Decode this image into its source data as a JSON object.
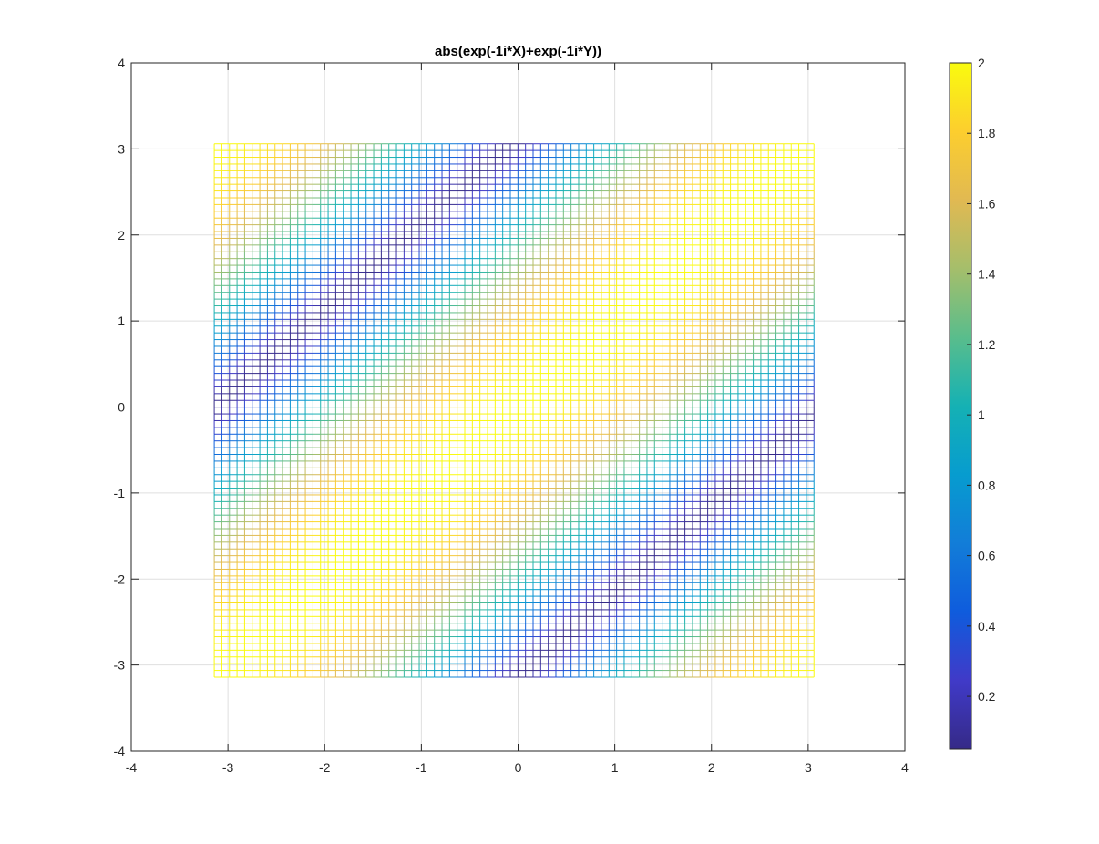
{
  "chart_data": {
    "type": "heatmap",
    "title": "abs(exp(-1i*X)+exp(-1i*Y))",
    "function": "abs(exp(-1i*X)+exp(-1i*Y))",
    "mesh": {
      "x_start": -3.1416,
      "x_end": 3.0631,
      "y_start": -3.1416,
      "y_end": 3.0631,
      "step": 0.0785
    },
    "xlim": [
      -4,
      4
    ],
    "ylim": [
      -4,
      4
    ],
    "xticks": [
      "-4",
      "-3",
      "-2",
      "-1",
      "0",
      "1",
      "2",
      "3",
      "4"
    ],
    "yticks": [
      "-4",
      "-3",
      "-2",
      "-1",
      "0",
      "1",
      "2",
      "3",
      "4"
    ],
    "grid": true,
    "colorbar": {
      "position": "right",
      "range": [
        0.05,
        2
      ],
      "ticks": [
        "0.2",
        "0.4",
        "0.6",
        "0.8",
        "1",
        "1.2",
        "1.4",
        "1.6",
        "1.8",
        "2"
      ],
      "colormap": "parula"
    },
    "colors": {
      "axis": "#262626",
      "grid": "#dfdfdf"
    }
  }
}
